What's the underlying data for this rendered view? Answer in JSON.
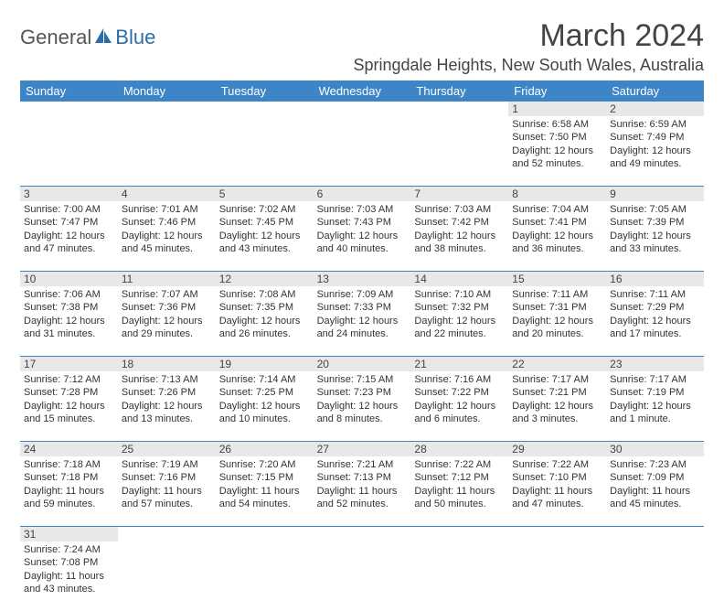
{
  "brand": {
    "text_general": "General",
    "text_blue": "Blue",
    "logo_color": "#2c6ca8"
  },
  "header": {
    "month_year": "March 2024",
    "location": "Springdale Heights, New South Wales, Australia"
  },
  "colors": {
    "header_bg": "#3d85c6",
    "header_text": "#ffffff",
    "daynum_bg": "#e8e8e8",
    "border": "#3d85c6"
  },
  "weekdays": [
    "Sunday",
    "Monday",
    "Tuesday",
    "Wednesday",
    "Thursday",
    "Friday",
    "Saturday"
  ],
  "weeks": [
    {
      "days": [
        null,
        null,
        null,
        null,
        null,
        {
          "n": "1",
          "sunrise": "Sunrise: 6:58 AM",
          "sunset": "Sunset: 7:50 PM",
          "d1": "Daylight: 12 hours",
          "d2": "and 52 minutes."
        },
        {
          "n": "2",
          "sunrise": "Sunrise: 6:59 AM",
          "sunset": "Sunset: 7:49 PM",
          "d1": "Daylight: 12 hours",
          "d2": "and 49 minutes."
        }
      ]
    },
    {
      "days": [
        {
          "n": "3",
          "sunrise": "Sunrise: 7:00 AM",
          "sunset": "Sunset: 7:47 PM",
          "d1": "Daylight: 12 hours",
          "d2": "and 47 minutes."
        },
        {
          "n": "4",
          "sunrise": "Sunrise: 7:01 AM",
          "sunset": "Sunset: 7:46 PM",
          "d1": "Daylight: 12 hours",
          "d2": "and 45 minutes."
        },
        {
          "n": "5",
          "sunrise": "Sunrise: 7:02 AM",
          "sunset": "Sunset: 7:45 PM",
          "d1": "Daylight: 12 hours",
          "d2": "and 43 minutes."
        },
        {
          "n": "6",
          "sunrise": "Sunrise: 7:03 AM",
          "sunset": "Sunset: 7:43 PM",
          "d1": "Daylight: 12 hours",
          "d2": "and 40 minutes."
        },
        {
          "n": "7",
          "sunrise": "Sunrise: 7:03 AM",
          "sunset": "Sunset: 7:42 PM",
          "d1": "Daylight: 12 hours",
          "d2": "and 38 minutes."
        },
        {
          "n": "8",
          "sunrise": "Sunrise: 7:04 AM",
          "sunset": "Sunset: 7:41 PM",
          "d1": "Daylight: 12 hours",
          "d2": "and 36 minutes."
        },
        {
          "n": "9",
          "sunrise": "Sunrise: 7:05 AM",
          "sunset": "Sunset: 7:39 PM",
          "d1": "Daylight: 12 hours",
          "d2": "and 33 minutes."
        }
      ]
    },
    {
      "days": [
        {
          "n": "10",
          "sunrise": "Sunrise: 7:06 AM",
          "sunset": "Sunset: 7:38 PM",
          "d1": "Daylight: 12 hours",
          "d2": "and 31 minutes."
        },
        {
          "n": "11",
          "sunrise": "Sunrise: 7:07 AM",
          "sunset": "Sunset: 7:36 PM",
          "d1": "Daylight: 12 hours",
          "d2": "and 29 minutes."
        },
        {
          "n": "12",
          "sunrise": "Sunrise: 7:08 AM",
          "sunset": "Sunset: 7:35 PM",
          "d1": "Daylight: 12 hours",
          "d2": "and 26 minutes."
        },
        {
          "n": "13",
          "sunrise": "Sunrise: 7:09 AM",
          "sunset": "Sunset: 7:33 PM",
          "d1": "Daylight: 12 hours",
          "d2": "and 24 minutes."
        },
        {
          "n": "14",
          "sunrise": "Sunrise: 7:10 AM",
          "sunset": "Sunset: 7:32 PM",
          "d1": "Daylight: 12 hours",
          "d2": "and 22 minutes."
        },
        {
          "n": "15",
          "sunrise": "Sunrise: 7:11 AM",
          "sunset": "Sunset: 7:31 PM",
          "d1": "Daylight: 12 hours",
          "d2": "and 20 minutes."
        },
        {
          "n": "16",
          "sunrise": "Sunrise: 7:11 AM",
          "sunset": "Sunset: 7:29 PM",
          "d1": "Daylight: 12 hours",
          "d2": "and 17 minutes."
        }
      ]
    },
    {
      "days": [
        {
          "n": "17",
          "sunrise": "Sunrise: 7:12 AM",
          "sunset": "Sunset: 7:28 PM",
          "d1": "Daylight: 12 hours",
          "d2": "and 15 minutes."
        },
        {
          "n": "18",
          "sunrise": "Sunrise: 7:13 AM",
          "sunset": "Sunset: 7:26 PM",
          "d1": "Daylight: 12 hours",
          "d2": "and 13 minutes."
        },
        {
          "n": "19",
          "sunrise": "Sunrise: 7:14 AM",
          "sunset": "Sunset: 7:25 PM",
          "d1": "Daylight: 12 hours",
          "d2": "and 10 minutes."
        },
        {
          "n": "20",
          "sunrise": "Sunrise: 7:15 AM",
          "sunset": "Sunset: 7:23 PM",
          "d1": "Daylight: 12 hours",
          "d2": "and 8 minutes."
        },
        {
          "n": "21",
          "sunrise": "Sunrise: 7:16 AM",
          "sunset": "Sunset: 7:22 PM",
          "d1": "Daylight: 12 hours",
          "d2": "and 6 minutes."
        },
        {
          "n": "22",
          "sunrise": "Sunrise: 7:17 AM",
          "sunset": "Sunset: 7:21 PM",
          "d1": "Daylight: 12 hours",
          "d2": "and 3 minutes."
        },
        {
          "n": "23",
          "sunrise": "Sunrise: 7:17 AM",
          "sunset": "Sunset: 7:19 PM",
          "d1": "Daylight: 12 hours",
          "d2": "and 1 minute."
        }
      ]
    },
    {
      "days": [
        {
          "n": "24",
          "sunrise": "Sunrise: 7:18 AM",
          "sunset": "Sunset: 7:18 PM",
          "d1": "Daylight: 11 hours",
          "d2": "and 59 minutes."
        },
        {
          "n": "25",
          "sunrise": "Sunrise: 7:19 AM",
          "sunset": "Sunset: 7:16 PM",
          "d1": "Daylight: 11 hours",
          "d2": "and 57 minutes."
        },
        {
          "n": "26",
          "sunrise": "Sunrise: 7:20 AM",
          "sunset": "Sunset: 7:15 PM",
          "d1": "Daylight: 11 hours",
          "d2": "and 54 minutes."
        },
        {
          "n": "27",
          "sunrise": "Sunrise: 7:21 AM",
          "sunset": "Sunset: 7:13 PM",
          "d1": "Daylight: 11 hours",
          "d2": "and 52 minutes."
        },
        {
          "n": "28",
          "sunrise": "Sunrise: 7:22 AM",
          "sunset": "Sunset: 7:12 PM",
          "d1": "Daylight: 11 hours",
          "d2": "and 50 minutes."
        },
        {
          "n": "29",
          "sunrise": "Sunrise: 7:22 AM",
          "sunset": "Sunset: 7:10 PM",
          "d1": "Daylight: 11 hours",
          "d2": "and 47 minutes."
        },
        {
          "n": "30",
          "sunrise": "Sunrise: 7:23 AM",
          "sunset": "Sunset: 7:09 PM",
          "d1": "Daylight: 11 hours",
          "d2": "and 45 minutes."
        }
      ]
    },
    {
      "last": true,
      "days": [
        {
          "n": "31",
          "sunrise": "Sunrise: 7:24 AM",
          "sunset": "Sunset: 7:08 PM",
          "d1": "Daylight: 11 hours",
          "d2": "and 43 minutes."
        },
        null,
        null,
        null,
        null,
        null,
        null
      ]
    }
  ]
}
